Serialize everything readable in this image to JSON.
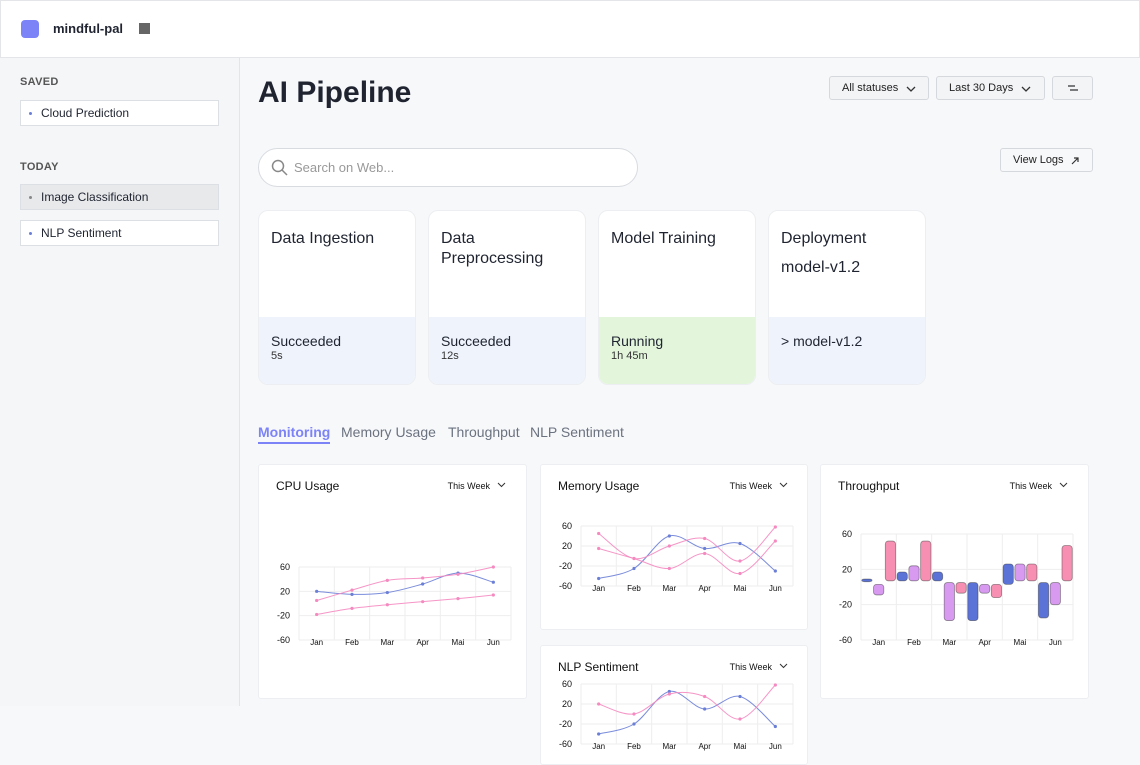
{
  "header": {
    "app_name": "mindful-pal"
  },
  "sidebar": {
    "sections": [
      {
        "title": "SAVED",
        "items": [
          "Cloud Prediction"
        ]
      },
      {
        "title": "TODAY",
        "items": [
          "Image Classification",
          "NLP Sentiment"
        ]
      }
    ]
  },
  "main": {
    "title": "AI Pipeline",
    "filters": [
      "All statuses",
      "Last 30 Days"
    ],
    "search_placeholder": "Search on Web...",
    "view_logs": "View Logs",
    "stages": [
      {
        "name": "Data Ingestion",
        "status": "Succeeded",
        "duration": "5s"
      },
      {
        "name": "Data Preprocessing",
        "status": "Succeeded",
        "duration": "12s"
      },
      {
        "name": "Model Training",
        "status": "Running",
        "duration": "1h 45m"
      },
      {
        "name": "Deployment",
        "subtitle": "model-v1.2",
        "status": "> model-v1.2"
      }
    ],
    "tabs": [
      "Monitoring",
      "Memory Usage",
      "Throughput",
      "NLP Sentiment"
    ]
  },
  "charts": [
    {
      "type": "line",
      "title": "CPU Usage",
      "period": "This Week",
      "categories": [
        "Jan",
        "Feb",
        "Mar",
        "Apr",
        "Mai",
        "Jun"
      ],
      "ylim": [
        -60,
        60
      ],
      "yticks": [
        60,
        20,
        -20,
        -60
      ],
      "grid": true,
      "series": [
        {
          "color": "#6b7fd7",
          "values": [
            20,
            15,
            18,
            32,
            50,
            35
          ]
        },
        {
          "color": "#f58ac0",
          "values": [
            5,
            22,
            38,
            42,
            48,
            60
          ]
        },
        {
          "color": "#f58ac0",
          "values": [
            -18,
            -8,
            -2,
            3,
            8,
            14
          ]
        }
      ]
    },
    {
      "type": "line",
      "title": "Memory Usage",
      "period": "This Week",
      "categories": [
        "Jan",
        "Feb",
        "Mar",
        "Apr",
        "Mai",
        "Jun"
      ],
      "ylim": [
        -60,
        60
      ],
      "yticks": [
        60,
        20,
        -20,
        -60
      ],
      "grid": true,
      "series": [
        {
          "color": "#6b7fd7",
          "values": [
            -45,
            -25,
            40,
            15,
            25,
            -30
          ]
        },
        {
          "color": "#f58ac0",
          "values": [
            15,
            -5,
            -25,
            5,
            -35,
            30
          ]
        },
        {
          "color": "#f58ac0",
          "values": [
            45,
            -5,
            20,
            35,
            -10,
            58
          ]
        }
      ]
    },
    {
      "type": "range_bar",
      "title": "Throughput",
      "period": "This Week",
      "categories": [
        "Jan",
        "Feb",
        "Mar",
        "Apr",
        "Mai",
        "Jun"
      ],
      "ylim": [
        -60,
        60
      ],
      "yticks": [
        60,
        20,
        -20,
        -60
      ],
      "grid": true,
      "series": [
        {
          "color": "#5b72d6",
          "low": [
            6,
            7,
            7,
            -38,
            3,
            -35
          ],
          "high": [
            9,
            17,
            17,
            5,
            26,
            5
          ]
        },
        {
          "color": "#d79af0",
          "low": [
            -9,
            7,
            -38,
            -7,
            7,
            -20
          ],
          "high": [
            3,
            24,
            5,
            3,
            26,
            5
          ]
        },
        {
          "color": "#f78fb3",
          "low": [
            7,
            7,
            -7,
            -12,
            7,
            7
          ],
          "high": [
            52,
            52,
            5,
            3,
            26,
            47
          ]
        }
      ]
    },
    {
      "type": "line",
      "title": "NLP Sentiment",
      "period": "This Week",
      "categories": [
        "Jan",
        "Feb",
        "Mar",
        "Apr",
        "Mai",
        "Jun"
      ],
      "ylim": [
        -60,
        60
      ],
      "yticks": [
        60,
        20,
        -20,
        -60
      ],
      "grid": true,
      "series": [
        {
          "color": "#6b7fd7",
          "values": [
            -40,
            -20,
            45,
            10,
            35,
            -25
          ]
        },
        {
          "color": "#f58ac0",
          "values": [
            20,
            0,
            40,
            35,
            -10,
            58
          ]
        }
      ]
    }
  ]
}
